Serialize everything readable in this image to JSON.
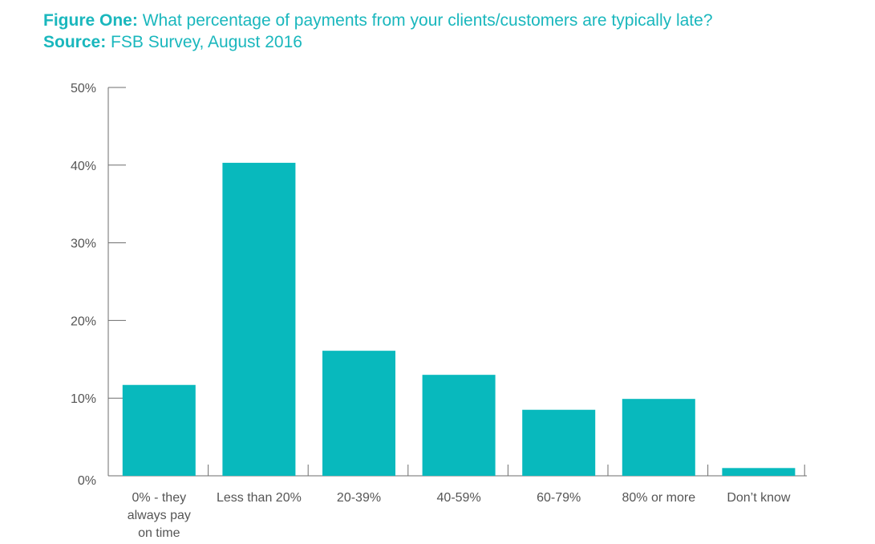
{
  "header": {
    "figure_label": "Figure One:",
    "figure_title": "What percentage of payments from your clients/customers are typically late?",
    "source_label": "Source:",
    "source_text": "FSB Survey, August 2016"
  },
  "chart_data": {
    "type": "bar",
    "title": "What percentage of payments from your clients/customers are typically late?",
    "xlabel": "",
    "ylabel": "",
    "ylim": [
      0,
      50
    ],
    "yticks": [
      0,
      10,
      20,
      30,
      40,
      50
    ],
    "ytick_labels": [
      "0%",
      "10%",
      "20%",
      "30%",
      "40%",
      "50%"
    ],
    "categories": [
      "0% - they always pay on time",
      "Less than 20%",
      "20-39%",
      "40-59%",
      "60-79%",
      "80% or more",
      "Don’t know"
    ],
    "category_label_lines": [
      [
        "0% - they",
        "always pay",
        "on time"
      ],
      [
        "Less than 20%"
      ],
      [
        "20-39%"
      ],
      [
        "40-59%"
      ],
      [
        "60-79%"
      ],
      [
        "80% or more"
      ],
      [
        "Don’t know"
      ]
    ],
    "values": [
      11.7,
      40.3,
      16.1,
      13.0,
      8.5,
      9.9,
      1.0
    ],
    "bar_color": "#08b9bd",
    "grid": false,
    "legend": "none"
  }
}
